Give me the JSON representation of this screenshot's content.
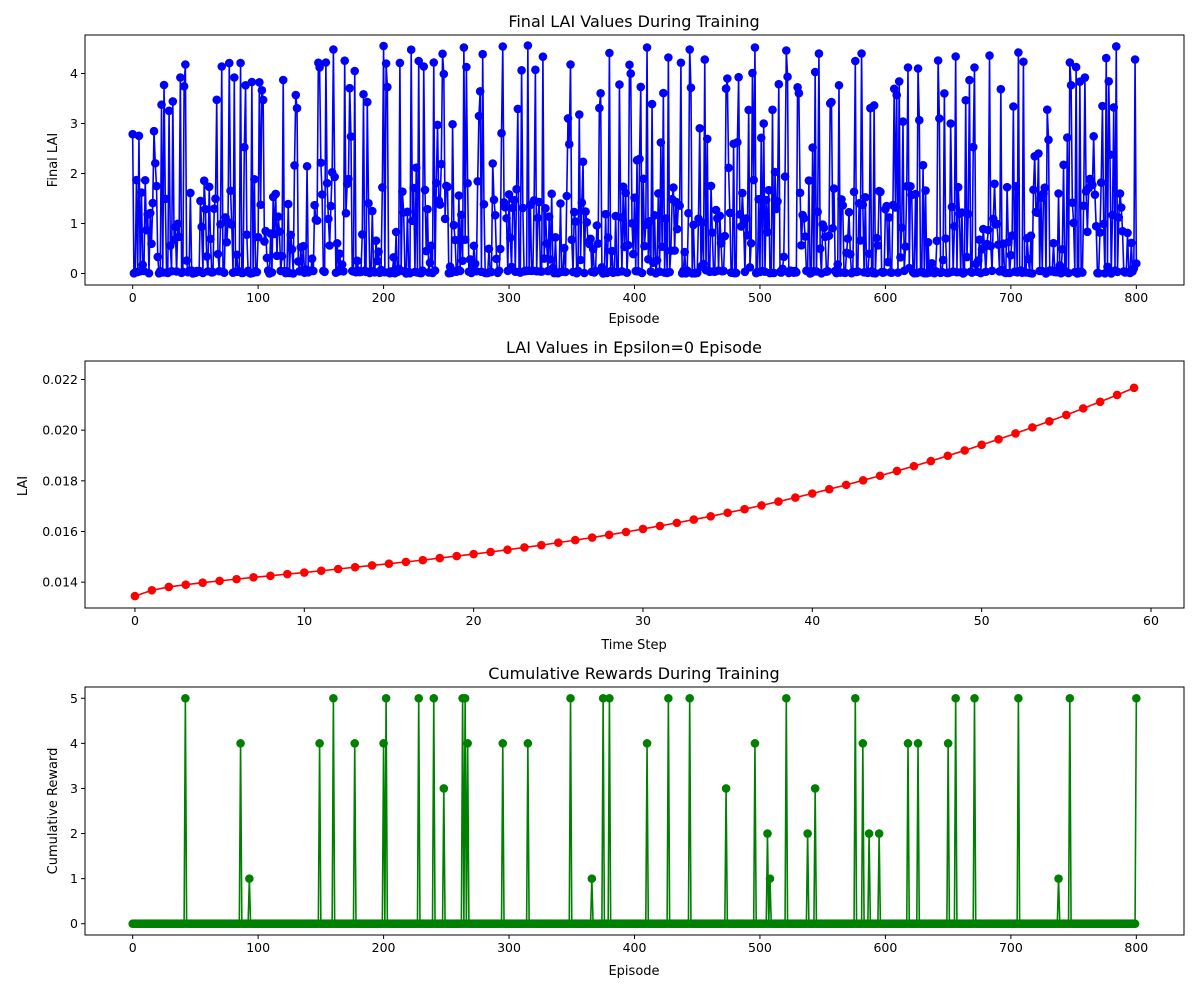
{
  "chart_data": [
    {
      "type": "line",
      "title": "Final LAI Values During Training",
      "xlabel": "Episode",
      "ylabel": "Final LAI",
      "xlim": [
        -38,
        838
      ],
      "ylim": [
        -0.23,
        4.77
      ],
      "xticks": [
        0,
        100,
        200,
        300,
        400,
        500,
        600,
        700,
        800
      ],
      "yticks": [
        0,
        1,
        2,
        3,
        4
      ],
      "grid": false,
      "color": "#0000ff",
      "marker": "circle",
      "seed": 7,
      "base_noise_max": 0.06,
      "spike_probability": 0.62,
      "spike_max": 4.55,
      "x_start": 0,
      "x_end": 799,
      "note_values": "800 episodes; values mostly near 0 with frequent spikes up to about 4.55 (peaks approx. 4.55 at ~200, 4.55 at ~295, 4.55 at ~315, 4.5 at ~265, 4.48 at ~160)",
      "highlights": [
        {
          "x": 42,
          "y": 4.18
        },
        {
          "x": 86,
          "y": 4.21
        },
        {
          "x": 95,
          "y": 3.83
        },
        {
          "x": 149,
          "y": 4.12
        },
        {
          "x": 160,
          "y": 4.48
        },
        {
          "x": 177,
          "y": 4.05
        },
        {
          "x": 200,
          "y": 4.55
        },
        {
          "x": 202,
          "y": 4.2
        },
        {
          "x": 228,
          "y": 4.25
        },
        {
          "x": 240,
          "y": 4.22
        },
        {
          "x": 248,
          "y": 3.99
        },
        {
          "x": 264,
          "y": 4.52
        },
        {
          "x": 266,
          "y": 4.13
        },
        {
          "x": 295,
          "y": 4.54
        },
        {
          "x": 315,
          "y": 4.56
        },
        {
          "x": 349,
          "y": 4.18
        },
        {
          "x": 380,
          "y": 4.41
        },
        {
          "x": 410,
          "y": 4.52
        },
        {
          "x": 427,
          "y": 4.32
        },
        {
          "x": 444,
          "y": 4.48
        },
        {
          "x": 496,
          "y": 4.52
        },
        {
          "x": 521,
          "y": 4.46
        },
        {
          "x": 544,
          "y": 4.03
        },
        {
          "x": 576,
          "y": 4.25
        },
        {
          "x": 581,
          "y": 4.4
        },
        {
          "x": 618,
          "y": 4.12
        },
        {
          "x": 626,
          "y": 4.1
        },
        {
          "x": 656,
          "y": 4.34
        },
        {
          "x": 671,
          "y": 4.12
        },
        {
          "x": 706,
          "y": 4.42
        },
        {
          "x": 747,
          "y": 4.22
        },
        {
          "x": 799,
          "y": 4.28
        },
        {
          "x": 800,
          "y": 0.2
        }
      ]
    },
    {
      "type": "line",
      "title": "LAI Values in Epsilon=0 Episode",
      "xlabel": "Time Step",
      "ylabel": "LAI",
      "xlim": [
        -2.95,
        61.95
      ],
      "ylim": [
        0.01298,
        0.02273
      ],
      "xticks": [
        0,
        10,
        20,
        30,
        40,
        50,
        60
      ],
      "yticks": [
        0.014,
        0.016,
        0.018,
        0.02,
        0.022
      ],
      "ytick_labels": [
        "0.014",
        "0.016",
        "0.018",
        "0.020",
        "0.022"
      ],
      "grid": false,
      "color": "#ff0000",
      "marker": "circle",
      "x": [
        0,
        1,
        2,
        3,
        4,
        5,
        6,
        7,
        8,
        9,
        10,
        11,
        12,
        13,
        14,
        15,
        16,
        17,
        18,
        19,
        20,
        21,
        22,
        23,
        24,
        25,
        26,
        27,
        28,
        29,
        30,
        31,
        32,
        33,
        34,
        35,
        36,
        37,
        38,
        39,
        40,
        41,
        42,
        43,
        44,
        45,
        46,
        47,
        48,
        49,
        50,
        51,
        52,
        53,
        54,
        55,
        56,
        57,
        58,
        59
      ],
      "y": [
        0.01345,
        0.01368,
        0.01381,
        0.0139,
        0.01398,
        0.01405,
        0.01412,
        0.01419,
        0.01425,
        0.01432,
        0.01438,
        0.01445,
        0.01452,
        0.01459,
        0.01466,
        0.01473,
        0.0148,
        0.01487,
        0.01495,
        0.01503,
        0.01511,
        0.01519,
        0.01528,
        0.01537,
        0.01546,
        0.01556,
        0.01566,
        0.01576,
        0.01587,
        0.01598,
        0.0161,
        0.01622,
        0.01634,
        0.01647,
        0.0166,
        0.01674,
        0.01688,
        0.01703,
        0.01718,
        0.01734,
        0.0175,
        0.01767,
        0.01784,
        0.01802,
        0.0182,
        0.01839,
        0.01858,
        0.01878,
        0.01899,
        0.0192,
        0.01942,
        0.01964,
        0.01987,
        0.02011,
        0.02035,
        0.0206,
        0.02086,
        0.02112,
        0.02139,
        0.02167
      ]
    },
    {
      "type": "line",
      "title": "Cumulative Rewards During Training",
      "xlabel": "Episode",
      "ylabel": "Cumulative Reward",
      "xlim": [
        -38,
        838
      ],
      "ylim": [
        -0.25,
        5.25
      ],
      "xticks": [
        0,
        100,
        200,
        300,
        400,
        500,
        600,
        700,
        800
      ],
      "yticks": [
        0,
        1,
        2,
        3,
        4,
        5
      ],
      "grid": false,
      "color": "#008000",
      "marker": "circle",
      "x_start": 0,
      "x_end": 800,
      "baseline": 0,
      "spikes": [
        {
          "x": 42,
          "y": 5
        },
        {
          "x": 86,
          "y": 4
        },
        {
          "x": 93,
          "y": 1
        },
        {
          "x": 149,
          "y": 4
        },
        {
          "x": 160,
          "y": 5
        },
        {
          "x": 177,
          "y": 4
        },
        {
          "x": 200,
          "y": 4
        },
        {
          "x": 202,
          "y": 5
        },
        {
          "x": 228,
          "y": 5
        },
        {
          "x": 240,
          "y": 5
        },
        {
          "x": 248,
          "y": 3
        },
        {
          "x": 263,
          "y": 5
        },
        {
          "x": 265,
          "y": 5
        },
        {
          "x": 267,
          "y": 4
        },
        {
          "x": 295,
          "y": 4
        },
        {
          "x": 315,
          "y": 4
        },
        {
          "x": 349,
          "y": 5
        },
        {
          "x": 366,
          "y": 1
        },
        {
          "x": 375,
          "y": 5
        },
        {
          "x": 380,
          "y": 5
        },
        {
          "x": 410,
          "y": 4
        },
        {
          "x": 427,
          "y": 5
        },
        {
          "x": 444,
          "y": 5
        },
        {
          "x": 473,
          "y": 3
        },
        {
          "x": 496,
          "y": 4
        },
        {
          "x": 506,
          "y": 2
        },
        {
          "x": 508,
          "y": 1
        },
        {
          "x": 521,
          "y": 5
        },
        {
          "x": 538,
          "y": 2
        },
        {
          "x": 544,
          "y": 3
        },
        {
          "x": 576,
          "y": 5
        },
        {
          "x": 582,
          "y": 4
        },
        {
          "x": 587,
          "y": 2
        },
        {
          "x": 595,
          "y": 2
        },
        {
          "x": 618,
          "y": 4
        },
        {
          "x": 626,
          "y": 4
        },
        {
          "x": 650,
          "y": 4
        },
        {
          "x": 656,
          "y": 5
        },
        {
          "x": 671,
          "y": 5
        },
        {
          "x": 706,
          "y": 5
        },
        {
          "x": 738,
          "y": 1
        },
        {
          "x": 747,
          "y": 5
        },
        {
          "x": 800,
          "y": 5
        }
      ]
    }
  ]
}
